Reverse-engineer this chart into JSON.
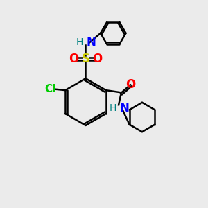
{
  "bg_color": "#ebebeb",
  "bond_color": "#000000",
  "bond_width": 1.8,
  "S_color": "#cccc00",
  "N_color": "#0000ff",
  "O_color": "#ff0000",
  "Cl_color": "#00cc00",
  "H_color": "#008080",
  "figsize": [
    3.0,
    3.0
  ],
  "dpi": 100,
  "xlim": [
    0,
    10
  ],
  "ylim": [
    0,
    10
  ]
}
